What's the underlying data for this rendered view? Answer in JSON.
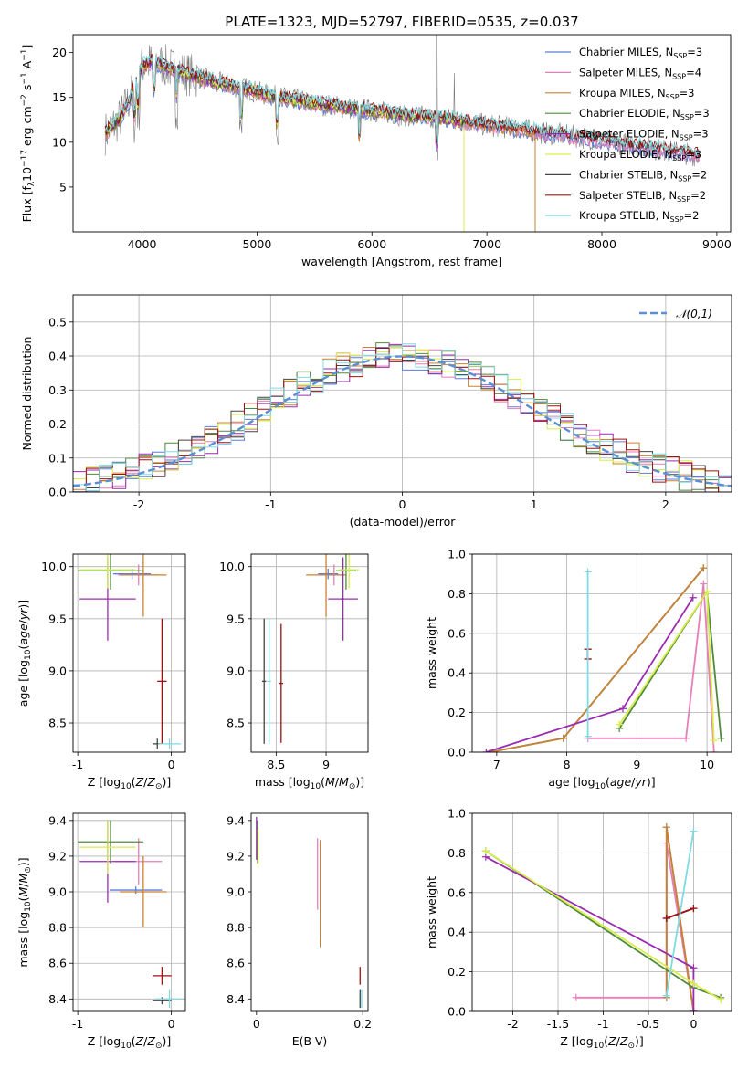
{
  "figure": {
    "title": "PLATE=1323, MJD=52797, FIBERID=0535, z=0.037"
  },
  "model_colors": {
    "Chabrier MILES": "#5b7fd8",
    "Salpeter MILES": "#e67eb8",
    "Kroupa MILES": "#c9822e",
    "Chabrier ELODIE": "#4f8a3c",
    "Salpeter ELODIE": "#9a2bb0",
    "Kroupa ELODIE": "#d9ee4a",
    "Chabrier STELIB": "#444444",
    "Salpeter STELIB": "#a01010",
    "Kroupa STELIB": "#7fdbe0",
    "normal_fit": "#5a8fd6",
    "data_spectrum": "#7a7a7a"
  },
  "chart_data": [
    {
      "id": "spectrum",
      "type": "line",
      "title": "PLATE=1323, MJD=52797, FIBERID=0535, z=0.037",
      "xlabel": "wavelength [Angstrom, rest frame]",
      "ylabel": "Flux [f_λ 10^-17 erg cm^-2 s^-1 A^-1]",
      "xlim": [
        3400,
        9120
      ],
      "ylim": [
        0,
        22
      ],
      "xticks": [
        4000,
        5000,
        6000,
        7000,
        8000,
        9000
      ],
      "yticks": [
        5,
        10,
        15,
        20
      ],
      "legend_position": "top-right",
      "legend": [
        {
          "name": "Chabrier MILES",
          "nssp": "3"
        },
        {
          "name": "Salpeter MILES",
          "nssp": "4"
        },
        {
          "name": "Kroupa MILES",
          "nssp": "3"
        },
        {
          "name": "Chabrier ELODIE",
          "nssp": "3"
        },
        {
          "name": "Salpeter ELODIE",
          "nssp": "3"
        },
        {
          "name": "Kroupa ELODIE",
          "nssp": "3"
        },
        {
          "name": "Chabrier STELIB",
          "nssp": "2"
        },
        {
          "name": "Salpeter STELIB",
          "nssp": "2"
        },
        {
          "name": "Kroupa STELIB",
          "nssp": "2"
        }
      ],
      "continuum": {
        "x": [
          3680,
          3800,
          3900,
          4000,
          4100,
          4300,
          4500,
          4700,
          4900,
          5100,
          5300,
          5500,
          5800,
          6000,
          6300,
          6560,
          6800,
          7000,
          7300,
          7500,
          7800,
          8000,
          8300,
          8600,
          8850
        ],
        "y": [
          11,
          12.5,
          15,
          18.5,
          19,
          18,
          17.2,
          16.5,
          16,
          15.2,
          14.8,
          14.3,
          13.8,
          13.5,
          13,
          12.8,
          12.3,
          11.9,
          11.5,
          11,
          10.6,
          10.2,
          9.6,
          9,
          8.5
        ]
      },
      "emission_lines": [
        6563,
        6716
      ]
    },
    {
      "id": "residuals",
      "type": "line",
      "xlabel": "(data-model)/error",
      "ylabel": "Normed distribution",
      "xlim": [
        -2.5,
        2.5
      ],
      "ylim": [
        0,
        0.58
      ],
      "xticks": [
        -2,
        -1,
        0,
        1,
        2
      ],
      "yticks": [
        0.0,
        0.1,
        0.2,
        0.3,
        0.4,
        0.5
      ],
      "grid": true,
      "legend_position": "top-right",
      "normal_label": "𝒩(0,1)"
    },
    {
      "id": "age_vs_Z",
      "type": "scatter",
      "xlabel": "Z [log10(Z/Z⊙)]",
      "ylabel": "age [log10(age/yr)]",
      "xlim": [
        -1.05,
        0.15
      ],
      "ylim": [
        8.22,
        10.12
      ],
      "xticks": [
        -1,
        0
      ],
      "yticks": [
        8.5,
        9.0,
        9.5,
        10.0
      ],
      "grid": true,
      "points": [
        {
          "model": "Chabrier MILES",
          "x": -0.42,
          "xerr": 0.2,
          "y": 9.93,
          "yerr": 0.05
        },
        {
          "model": "Salpeter MILES",
          "x": -0.35,
          "xerr": 0.22,
          "y": 9.92,
          "yerr": 0.1
        },
        {
          "model": "Kroupa MILES",
          "x": -0.3,
          "xerr": 0.25,
          "y": 9.92,
          "yerr": 0.4
        },
        {
          "model": "Chabrier ELODIE",
          "x": -0.65,
          "xerr": 0.35,
          "y": 9.96,
          "yerr": 0.18
        },
        {
          "model": "Salpeter ELODIE",
          "x": -0.68,
          "xerr": 0.3,
          "y": 9.69,
          "yerr": 0.4
        },
        {
          "model": "Kroupa ELODIE",
          "x": -0.68,
          "xerr": 0.3,
          "y": 9.97,
          "yerr": 0.18
        },
        {
          "model": "Chabrier STELIB",
          "x": -0.15,
          "xerr": 0.05,
          "y": 8.3,
          "yerr": 0.05
        },
        {
          "model": "Salpeter STELIB",
          "x": -0.1,
          "xerr": 0.05,
          "y": 8.9,
          "yerr": 0.6
        },
        {
          "model": "Kroupa STELIB",
          "x": -0.02,
          "xerr": 0.12,
          "y": 8.3,
          "yerr": 0.05
        }
      ]
    },
    {
      "id": "age_vs_mass",
      "type": "scatter",
      "xlabel": "mass [log10(M/M⊙)]",
      "ylabel": "",
      "xlim": [
        8.25,
        9.42
      ],
      "ylim": [
        8.22,
        10.12
      ],
      "xticks": [
        8.5,
        9.0
      ],
      "yticks": [
        8.5,
        9.0,
        9.5,
        10.0
      ],
      "grid": true,
      "points": [
        {
          "model": "Chabrier MILES",
          "x": 9.02,
          "xerr": 0.1,
          "y": 9.93,
          "yerr": 0.05
        },
        {
          "model": "Salpeter MILES",
          "x": 9.08,
          "xerr": 0.1,
          "y": 9.92,
          "yerr": 0.1
        },
        {
          "model": "Kroupa MILES",
          "x": 9.0,
          "xerr": 0.2,
          "y": 9.92,
          "yerr": 0.4
        },
        {
          "model": "Chabrier ELODIE",
          "x": 9.2,
          "xerr": 0.1,
          "y": 9.96,
          "yerr": 0.18
        },
        {
          "model": "Salpeter ELODIE",
          "x": 9.17,
          "xerr": 0.15,
          "y": 9.69,
          "yerr": 0.4
        },
        {
          "model": "Kroupa ELODIE",
          "x": 9.23,
          "xerr": 0.1,
          "y": 9.97,
          "yerr": 0.18
        },
        {
          "model": "Chabrier STELIB",
          "x": 8.38,
          "xerr": 0.02,
          "y": 8.9,
          "yerr": 0.6
        },
        {
          "model": "Salpeter STELIB",
          "x": 8.55,
          "xerr": 0.02,
          "y": 8.88,
          "yerr": 0.57
        },
        {
          "model": "Kroupa STELIB",
          "x": 8.43,
          "xerr": 0.02,
          "y": 8.9,
          "yerr": 0.6
        }
      ]
    },
    {
      "id": "weight_vs_age",
      "type": "line",
      "xlabel": "age [log10(age/yr)]",
      "ylabel": "mass weight",
      "xlim": [
        6.65,
        10.35
      ],
      "ylim": [
        0,
        1.0
      ],
      "xticks": [
        7,
        8,
        9,
        10
      ],
      "yticks": [
        0.0,
        0.2,
        0.4,
        0.6,
        0.8,
        1.0
      ],
      "grid": true,
      "series": [
        {
          "model": "Chabrier MILES",
          "x": [
            6.9,
            7.95,
            9.95
          ],
          "y": [
            0.0,
            0.07,
            0.93
          ]
        },
        {
          "model": "Salpeter MILES",
          "x": [
            8.3,
            9.7,
            9.95,
            10.1
          ],
          "y": [
            0.07,
            0.07,
            0.85,
            0.0
          ]
        },
        {
          "model": "Kroupa MILES",
          "x": [
            6.9,
            7.95,
            9.95
          ],
          "y": [
            0.0,
            0.07,
            0.93
          ]
        },
        {
          "model": "Chabrier ELODIE",
          "x": [
            8.75,
            10.0,
            10.2
          ],
          "y": [
            0.12,
            0.81,
            0.07
          ]
        },
        {
          "model": "Salpeter ELODIE",
          "x": [
            6.85,
            8.8,
            9.8
          ],
          "y": [
            0.0,
            0.22,
            0.78
          ]
        },
        {
          "model": "Kroupa ELODIE",
          "x": [
            8.75,
            10.0,
            10.1
          ],
          "y": [
            0.14,
            0.81,
            0.06
          ]
        },
        {
          "model": "Chabrier STELIB",
          "x": [
            8.3,
            8.3
          ],
          "y": [
            0.47,
            0.52
          ]
        },
        {
          "model": "Salpeter STELIB",
          "x": [
            8.3,
            8.3
          ],
          "y": [
            0.47,
            0.52
          ]
        },
        {
          "model": "Kroupa STELIB",
          "x": [
            8.3,
            8.3
          ],
          "y": [
            0.08,
            0.91
          ]
        }
      ]
    },
    {
      "id": "mass_vs_Z",
      "type": "scatter",
      "xlabel": "Z [log10(Z/Z⊙)]",
      "ylabel": "mass [log10(M/M⊙)]",
      "xlim": [
        -1.05,
        0.15
      ],
      "ylim": [
        8.33,
        9.44
      ],
      "xticks": [
        -1,
        0
      ],
      "yticks": [
        8.4,
        8.6,
        8.8,
        9.0,
        9.2,
        9.4
      ],
      "grid": true,
      "points": [
        {
          "model": "Chabrier MILES",
          "x": -0.38,
          "xerr": 0.28,
          "y": 9.01,
          "yerr": 0.02
        },
        {
          "model": "Salpeter MILES",
          "x": -0.35,
          "xerr": 0.25,
          "y": 9.17,
          "yerr": 0.13
        },
        {
          "model": "Kroupa MILES",
          "x": -0.3,
          "xerr": 0.25,
          "y": 9.0,
          "yerr": 0.2
        },
        {
          "model": "Chabrier ELODIE",
          "x": -0.65,
          "xerr": 0.35,
          "y": 9.28,
          "yerr": 0.12
        },
        {
          "model": "Salpeter ELODIE",
          "x": -0.68,
          "xerr": 0.3,
          "y": 9.17,
          "yerr": 0.23
        },
        {
          "model": "Kroupa ELODIE",
          "x": -0.68,
          "xerr": 0.3,
          "y": 9.25,
          "yerr": 0.15
        },
        {
          "model": "Chabrier STELIB",
          "x": -0.1,
          "xerr": 0.1,
          "y": 8.39,
          "yerr": 0.02
        },
        {
          "model": "Salpeter STELIB",
          "x": -0.1,
          "xerr": 0.1,
          "y": 8.53,
          "yerr": 0.05
        },
        {
          "model": "Kroupa STELIB",
          "x": -0.02,
          "xerr": 0.15,
          "y": 8.4,
          "yerr": 0.05
        }
      ]
    },
    {
      "id": "mass_vs_EBV",
      "type": "scatter",
      "xlabel": "E(B-V)",
      "ylabel": "",
      "xlim": [
        -0.01,
        0.21
      ],
      "ylim": [
        8.33,
        9.44
      ],
      "xticks": [
        0.0,
        0.2
      ],
      "yticks": [
        8.4,
        8.6,
        8.8,
        9.0,
        9.2,
        9.4
      ],
      "grid": false,
      "points": [
        {
          "model": "Chabrier MILES",
          "x": 0.12,
          "y": 9.0,
          "yerr": 0.25
        },
        {
          "model": "Salpeter MILES",
          "x": 0.115,
          "y": 9.1,
          "yerr": 0.2
        },
        {
          "model": "Kroupa MILES",
          "x": 0.12,
          "y": 8.99,
          "yerr": 0.3
        },
        {
          "model": "Chabrier ELODIE",
          "x": 0.002,
          "y": 9.28,
          "yerr": 0.12
        },
        {
          "model": "Salpeter ELODIE",
          "x": 0.0,
          "y": 9.3,
          "yerr": 0.12
        },
        {
          "model": "Kroupa ELODIE",
          "x": 0.003,
          "y": 9.25,
          "yerr": 0.1
        },
        {
          "model": "Chabrier STELIB",
          "x": 0.195,
          "y": 8.4,
          "yerr": 0.05
        },
        {
          "model": "Salpeter STELIB",
          "x": 0.195,
          "y": 8.53,
          "yerr": 0.05
        },
        {
          "model": "Kroupa STELIB",
          "x": 0.198,
          "y": 8.4,
          "yerr": 0.05
        }
      ]
    },
    {
      "id": "weight_vs_Z",
      "type": "line",
      "xlabel": "Z [log10(Z/Z⊙)]",
      "ylabel": "mass weight",
      "xlim": [
        -2.45,
        0.42
      ],
      "ylim": [
        0,
        1.0
      ],
      "xticks": [
        -2.0,
        -1.5,
        -1.0,
        -0.5,
        0.0
      ],
      "yticks": [
        0.0,
        0.2,
        0.4,
        0.6,
        0.8,
        1.0
      ],
      "grid": true,
      "series": [
        {
          "model": "Chabrier MILES",
          "x": [
            -0.3,
            -0.3,
            0.0
          ],
          "y": [
            0.07,
            0.93,
            0.0
          ]
        },
        {
          "model": "Salpeter MILES",
          "x": [
            -1.3,
            -0.3,
            -0.3,
            0.0
          ],
          "y": [
            0.07,
            0.07,
            0.85,
            0.0
          ]
        },
        {
          "model": "Kroupa MILES",
          "x": [
            -0.3,
            -0.3,
            0.0
          ],
          "y": [
            0.07,
            0.93,
            0.0
          ]
        },
        {
          "model": "Chabrier ELODIE",
          "x": [
            -2.3,
            0.0,
            0.3
          ],
          "y": [
            0.81,
            0.12,
            0.07
          ]
        },
        {
          "model": "Salpeter ELODIE",
          "x": [
            -2.3,
            0.0,
            0.0
          ],
          "y": [
            0.78,
            0.22,
            0.0
          ]
        },
        {
          "model": "Kroupa ELODIE",
          "x": [
            -2.3,
            0.0,
            0.3
          ],
          "y": [
            0.81,
            0.14,
            0.06
          ]
        },
        {
          "model": "Chabrier STELIB",
          "x": [
            -0.3,
            0.0
          ],
          "y": [
            0.47,
            0.52
          ]
        },
        {
          "model": "Salpeter STELIB",
          "x": [
            -0.3,
            0.0
          ],
          "y": [
            0.47,
            0.52
          ]
        },
        {
          "model": "Kroupa STELIB",
          "x": [
            -0.3,
            0.0
          ],
          "y": [
            0.08,
            0.91
          ]
        }
      ]
    }
  ]
}
